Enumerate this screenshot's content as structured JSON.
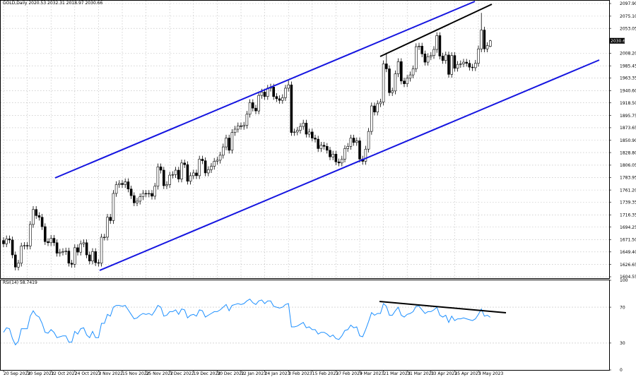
{
  "chart_data": [
    {
      "type": "candlestick",
      "title": "GOLD,Daily 2020.53 2032.31 2018.97 2030.66",
      "up_color": "#ffffff",
      "down_color": "#000000",
      "edge_color": "#000000",
      "grid": true,
      "ylim": [
        1602,
        2103
      ],
      "yticks": [
        {
          "value": 2097.9,
          "label": "2097.90"
        },
        {
          "value": 2075.1,
          "label": "2075.10"
        },
        {
          "value": 2053.05,
          "label": "2053.05"
        },
        {
          "value": 2008.2,
          "label": "2008.20"
        },
        {
          "value": 1985.45,
          "label": "1985.45"
        },
        {
          "value": 1963.35,
          "label": "1963.35"
        },
        {
          "value": 1940.6,
          "label": "1940.60"
        },
        {
          "value": 1918.5,
          "label": "1918.50"
        },
        {
          "value": 1895.75,
          "label": "1895.75"
        },
        {
          "value": 1873.65,
          "label": "1873.65"
        },
        {
          "value": 1850.9,
          "label": "1850.90"
        },
        {
          "value": 1828.8,
          "label": "1828.80"
        },
        {
          "value": 1806.05,
          "label": "1806.05"
        },
        {
          "value": 1783.95,
          "label": "1783.95"
        },
        {
          "value": 1761.2,
          "label": "1761.20"
        },
        {
          "value": 1739.35,
          "label": "1739.35"
        },
        {
          "value": 1716.35,
          "label": "1716.35"
        },
        {
          "value": 1694.25,
          "label": "1694.25"
        },
        {
          "value": 1671.5,
          "label": "1671.50"
        },
        {
          "value": 1649.4,
          "label": "1649.40"
        },
        {
          "value": 1626.65,
          "label": "1626.65"
        },
        {
          "value": 1604.55,
          "label": "1604.55"
        }
      ],
      "last_price": {
        "value": 2030.66,
        "label": "2030.66"
      },
      "xticks": [
        {
          "value": 0,
          "label": "20 Sep 2022"
        },
        {
          "value": 8,
          "label": "30 Sep 2022"
        },
        {
          "value": 16,
          "label": "12 Oct 2022"
        },
        {
          "value": 24,
          "label": "24 Oct 2022"
        },
        {
          "value": 32,
          "label": "3 Nov 2022"
        },
        {
          "value": 40,
          "label": "15 Nov 2022"
        },
        {
          "value": 48,
          "label": "25 Nov 2022"
        },
        {
          "value": 56,
          "label": "7 Dec 2022"
        },
        {
          "value": 64,
          "label": "19 Dec 2022"
        },
        {
          "value": 72,
          "label": "30 Dec 2022"
        },
        {
          "value": 80,
          "label": "12 Jan 2023"
        },
        {
          "value": 88,
          "label": "24 Jan 2023"
        },
        {
          "value": 96,
          "label": "3 Feb 2023"
        },
        {
          "value": 104,
          "label": "15 Feb 2023"
        },
        {
          "value": 112,
          "label": "27 Feb 2023"
        },
        {
          "value": 120,
          "label": "9 Mar 2023"
        },
        {
          "value": 128,
          "label": "21 Mar 2023"
        },
        {
          "value": 136,
          "label": "31 Mar 2023"
        },
        {
          "value": 144,
          "label": "13 Apr 2023"
        },
        {
          "value": 152,
          "label": "25 Apr 2023"
        },
        {
          "value": 160,
          "label": "5 May 2023"
        }
      ],
      "ohlc": [
        [
          1670,
          1676,
          1658,
          1664
        ],
        [
          1664,
          1679,
          1658,
          1673
        ],
        [
          1673,
          1679,
          1665,
          1671
        ],
        [
          1671,
          1677,
          1638,
          1644
        ],
        [
          1644,
          1650,
          1616,
          1622
        ],
        [
          1622,
          1635,
          1616,
          1629
        ],
        [
          1629,
          1666,
          1623,
          1660
        ],
        [
          1660,
          1667,
          1654,
          1661
        ],
        [
          1661,
          1667,
          1654,
          1660
        ],
        [
          1660,
          1705,
          1654,
          1699
        ],
        [
          1699,
          1732,
          1693,
          1726
        ],
        [
          1726,
          1732,
          1709,
          1715
        ],
        [
          1715,
          1721,
          1706,
          1712
        ],
        [
          1712,
          1718,
          1689,
          1695
        ],
        [
          1695,
          1701,
          1662,
          1668
        ],
        [
          1668,
          1674,
          1660,
          1666
        ],
        [
          1666,
          1680,
          1660,
          1674
        ],
        [
          1674,
          1680,
          1660,
          1666
        ],
        [
          1666,
          1672,
          1641,
          1647
        ],
        [
          1647,
          1655,
          1641,
          1649
        ],
        [
          1649,
          1656,
          1643,
          1650
        ],
        [
          1650,
          1657,
          1644,
          1651
        ],
        [
          1651,
          1657,
          1623,
          1629
        ],
        [
          1629,
          1635,
          1621,
          1627
        ],
        [
          1627,
          1663,
          1621,
          1657
        ],
        [
          1657,
          1663,
          1643,
          1649
        ],
        [
          1649,
          1670,
          1643,
          1664
        ],
        [
          1664,
          1672,
          1658,
          1666
        ],
        [
          1666,
          1672,
          1638,
          1644
        ],
        [
          1644,
          1650,
          1627,
          1633
        ],
        [
          1633,
          1656,
          1627,
          1650
        ],
        [
          1650,
          1656,
          1624,
          1630
        ],
        [
          1630,
          1636,
          1623,
          1629
        ],
        [
          1629,
          1682,
          1623,
          1676
        ],
        [
          1676,
          1682,
          1670,
          1676
        ],
        [
          1676,
          1718,
          1670,
          1712
        ],
        [
          1712,
          1718,
          1700,
          1706
        ],
        [
          1706,
          1761,
          1700,
          1755
        ],
        [
          1755,
          1777,
          1749,
          1771
        ],
        [
          1771,
          1779,
          1765,
          1773
        ],
        [
          1773,
          1779,
          1765,
          1771
        ],
        [
          1771,
          1782,
          1765,
          1776
        ],
        [
          1776,
          1782,
          1757,
          1763
        ],
        [
          1763,
          1769,
          1745,
          1751
        ],
        [
          1751,
          1757,
          1732,
          1738
        ],
        [
          1738,
          1747,
          1732,
          1741
        ],
        [
          1741,
          1755,
          1735,
          1749
        ],
        [
          1749,
          1761,
          1743,
          1755
        ],
        [
          1755,
          1761,
          1748,
          1754
        ],
        [
          1754,
          1761,
          1748,
          1755
        ],
        [
          1755,
          1761,
          1744,
          1750
        ],
        [
          1750,
          1774,
          1744,
          1768
        ],
        [
          1768,
          1809,
          1762,
          1803
        ],
        [
          1803,
          1809,
          1791,
          1797
        ],
        [
          1797,
          1803,
          1763,
          1769
        ],
        [
          1769,
          1777,
          1763,
          1771
        ],
        [
          1771,
          1794,
          1765,
          1788
        ],
        [
          1788,
          1795,
          1782,
          1789
        ],
        [
          1789,
          1803,
          1783,
          1797
        ],
        [
          1797,
          1803,
          1775,
          1781
        ],
        [
          1781,
          1816,
          1775,
          1810
        ],
        [
          1810,
          1816,
          1801,
          1807
        ],
        [
          1807,
          1813,
          1771,
          1777
        ],
        [
          1777,
          1793,
          1771,
          1787
        ],
        [
          1787,
          1798,
          1781,
          1792
        ],
        [
          1792,
          1798,
          1781,
          1787
        ],
        [
          1787,
          1823,
          1781,
          1817
        ],
        [
          1817,
          1823,
          1808,
          1814
        ],
        [
          1814,
          1820,
          1786,
          1792
        ],
        [
          1792,
          1804,
          1786,
          1798
        ],
        [
          1798,
          1810,
          1792,
          1804
        ],
        [
          1804,
          1819,
          1798,
          1813
        ],
        [
          1813,
          1821,
          1807,
          1815
        ],
        [
          1815,
          1830,
          1809,
          1824
        ],
        [
          1824,
          1845,
          1818,
          1839
        ],
        [
          1839,
          1861,
          1833,
          1855
        ],
        [
          1855,
          1861,
          1827,
          1833
        ],
        [
          1833,
          1871,
          1827,
          1865
        ],
        [
          1865,
          1877,
          1859,
          1871
        ],
        [
          1871,
          1883,
          1865,
          1877
        ],
        [
          1877,
          1883,
          1870,
          1876
        ],
        [
          1876,
          1884,
          1870,
          1878
        ],
        [
          1878,
          1904,
          1872,
          1898
        ],
        [
          1898,
          1925,
          1892,
          1919
        ],
        [
          1919,
          1925,
          1903,
          1909
        ],
        [
          1909,
          1915,
          1898,
          1904
        ],
        [
          1904,
          1938,
          1898,
          1932
        ],
        [
          1932,
          1944,
          1926,
          1938
        ],
        [
          1938,
          1944,
          1924,
          1930
        ],
        [
          1930,
          1951,
          1924,
          1945
        ],
        [
          1945,
          1953,
          1939,
          1947
        ],
        [
          1947,
          1953,
          1924,
          1930
        ],
        [
          1930,
          1936,
          1920,
          1926
        ],
        [
          1926,
          1932,
          1917,
          1923
        ],
        [
          1923,
          1934,
          1917,
          1928
        ],
        [
          1928,
          1951,
          1922,
          1945
        ],
        [
          1945,
          1959,
          1939,
          1951
        ],
        [
          1951,
          1957,
          1859,
          1865
        ],
        [
          1865,
          1872,
          1859,
          1866
        ],
        [
          1866,
          1875,
          1860,
          1869
        ],
        [
          1869,
          1882,
          1863,
          1876
        ],
        [
          1876,
          1888,
          1870,
          1882
        ],
        [
          1882,
          1888,
          1856,
          1862
        ],
        [
          1862,
          1872,
          1856,
          1866
        ],
        [
          1866,
          1872,
          1849,
          1855
        ],
        [
          1855,
          1861,
          1847,
          1853
        ],
        [
          1853,
          1859,
          1830,
          1836
        ],
        [
          1836,
          1848,
          1830,
          1842
        ],
        [
          1842,
          1848,
          1834,
          1840
        ],
        [
          1840,
          1846,
          1827,
          1833
        ],
        [
          1833,
          1839,
          1815,
          1821
        ],
        [
          1821,
          1832,
          1815,
          1826
        ],
        [
          1826,
          1832,
          1806,
          1812
        ],
        [
          1812,
          1818,
          1804,
          1810
        ],
        [
          1810,
          1823,
          1804,
          1817
        ],
        [
          1817,
          1842,
          1811,
          1836
        ],
        [
          1836,
          1846,
          1830,
          1840
        ],
        [
          1840,
          1861,
          1834,
          1855
        ],
        [
          1855,
          1861,
          1841,
          1847
        ],
        [
          1847,
          1856,
          1841,
          1850
        ],
        [
          1850,
          1856,
          1811,
          1817
        ],
        [
          1817,
          1823,
          1807,
          1813
        ],
        [
          1813,
          1841,
          1807,
          1835
        ],
        [
          1835,
          1873,
          1829,
          1867
        ],
        [
          1867,
          1919,
          1861,
          1913
        ],
        [
          1913,
          1919,
          1896,
          1902
        ],
        [
          1902,
          1923,
          1896,
          1917
        ],
        [
          1917,
          1926,
          1911,
          1920
        ],
        [
          1920,
          1995,
          1914,
          1989
        ],
        [
          1989,
          2009,
          1974,
          1980
        ],
        [
          1980,
          1986,
          1931,
          1937
        ],
        [
          1937,
          1946,
          1931,
          1940
        ],
        [
          1940,
          1977,
          1934,
          1971
        ],
        [
          1971,
          1999,
          1965,
          1993
        ],
        [
          1993,
          1999,
          1952,
          1958
        ],
        [
          1958,
          1964,
          1947,
          1953
        ],
        [
          1953,
          1969,
          1947,
          1963
        ],
        [
          1963,
          1975,
          1957,
          1969
        ],
        [
          1969,
          1986,
          1963,
          1980
        ],
        [
          1980,
          2026,
          1974,
          2020
        ],
        [
          2020,
          2027,
          2014,
          2021
        ],
        [
          2021,
          2027,
          2001,
          2007
        ],
        [
          2007,
          2013,
          1986,
          1992
        ],
        [
          1992,
          2008,
          1986,
          2002
        ],
        [
          2002,
          2010,
          1996,
          2004
        ],
        [
          2004,
          2021,
          1998,
          2015
        ],
        [
          2015,
          2046,
          2009,
          2040
        ],
        [
          2040,
          2046,
          1997,
          2003
        ],
        [
          2003,
          2009,
          1989,
          1995
        ],
        [
          1995,
          2011,
          1989,
          2005
        ],
        [
          2005,
          2011,
          1964,
          1970
        ],
        [
          1970,
          2010,
          1964,
          2004
        ],
        [
          2004,
          2010,
          1975,
          1981
        ],
        [
          1981,
          1994,
          1975,
          1988
        ],
        [
          1988,
          1995,
          1982,
          1989
        ],
        [
          1989,
          1998,
          1983,
          1992
        ],
        [
          1992,
          1998,
          1984,
          1990
        ],
        [
          1990,
          1996,
          1977,
          1983
        ],
        [
          1983,
          1989,
          1976,
          1982
        ],
        [
          1982,
          1996,
          1976,
          1990
        ],
        [
          1990,
          2022,
          1984,
          2016
        ],
        [
          2016,
          2081,
          2010,
          2050
        ],
        [
          2050,
          2056,
          2010,
          2016
        ],
        [
          2016,
          2028,
          2010,
          2022
        ],
        [
          2020.53,
          2032.31,
          2018.97,
          2030.66
        ]
      ]
    },
    {
      "type": "line",
      "title": "RSI(14) 58.7419",
      "color": "#1e90ff",
      "ylim": [
        0,
        100
      ],
      "yticks": [
        100,
        70,
        30,
        0
      ],
      "values": [
        42,
        47,
        46,
        35,
        28,
        32,
        46,
        46,
        46,
        60,
        66,
        61,
        59,
        52,
        42,
        41,
        45,
        42,
        36,
        37,
        38,
        38,
        31,
        31,
        43,
        40,
        46,
        47,
        39,
        36,
        43,
        36,
        36,
        52,
        52,
        62,
        60,
        70,
        72,
        72,
        71,
        72,
        67,
        62,
        57,
        58,
        61,
        63,
        62,
        63,
        61,
        66,
        72,
        70,
        60,
        61,
        65,
        65,
        67,
        62,
        68,
        67,
        58,
        61,
        62,
        60,
        67,
        66,
        59,
        61,
        63,
        65,
        65,
        67,
        70,
        73,
        66,
        72,
        73,
        74,
        73,
        74,
        77,
        79,
        75,
        73,
        77,
        78,
        74,
        77,
        77,
        71,
        70,
        69,
        70,
        73,
        74,
        48,
        48,
        49,
        51,
        53,
        47,
        48,
        45,
        45,
        40,
        42,
        42,
        40,
        37,
        39,
        35,
        34,
        38,
        44,
        45,
        50,
        47,
        48,
        38,
        37,
        45,
        54,
        64,
        61,
        63,
        63,
        74,
        71,
        61,
        61,
        66,
        70,
        61,
        59,
        62,
        63,
        65,
        71,
        71,
        67,
        63,
        65,
        65,
        67,
        70,
        61,
        59,
        61,
        53,
        60,
        55,
        57,
        57,
        58,
        57,
        56,
        55,
        57,
        62,
        68,
        60,
        61,
        58.74
      ]
    }
  ]
}
